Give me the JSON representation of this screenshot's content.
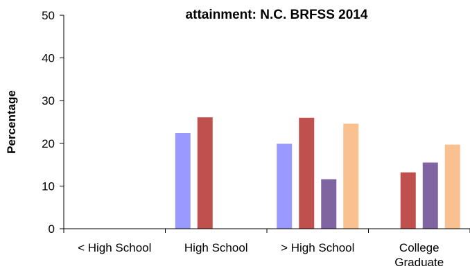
{
  "chart_data": {
    "type": "bar",
    "title_lines": [
      "attainment:  N.C. BRFSS 2014"
    ],
    "ylabel": "Percentage",
    "ylim": [
      0,
      50
    ],
    "yticks": [
      0,
      10,
      20,
      30,
      40,
      50
    ],
    "categories": [
      [
        "< High School"
      ],
      [
        "High School"
      ],
      [
        "> High School"
      ],
      [
        "College",
        "Graduate"
      ]
    ],
    "series": [
      {
        "color": "#9999ff",
        "values": [
          null,
          22.4,
          19.9,
          null
        ]
      },
      {
        "color": "#c0504d",
        "values": [
          null,
          26.1,
          26.0,
          13.2
        ]
      },
      {
        "color": "#8064a2",
        "values": [
          null,
          null,
          11.6,
          15.5
        ]
      },
      {
        "color": "#fac090",
        "values": [
          null,
          null,
          24.6,
          19.7
        ]
      }
    ],
    "grid": false
  }
}
